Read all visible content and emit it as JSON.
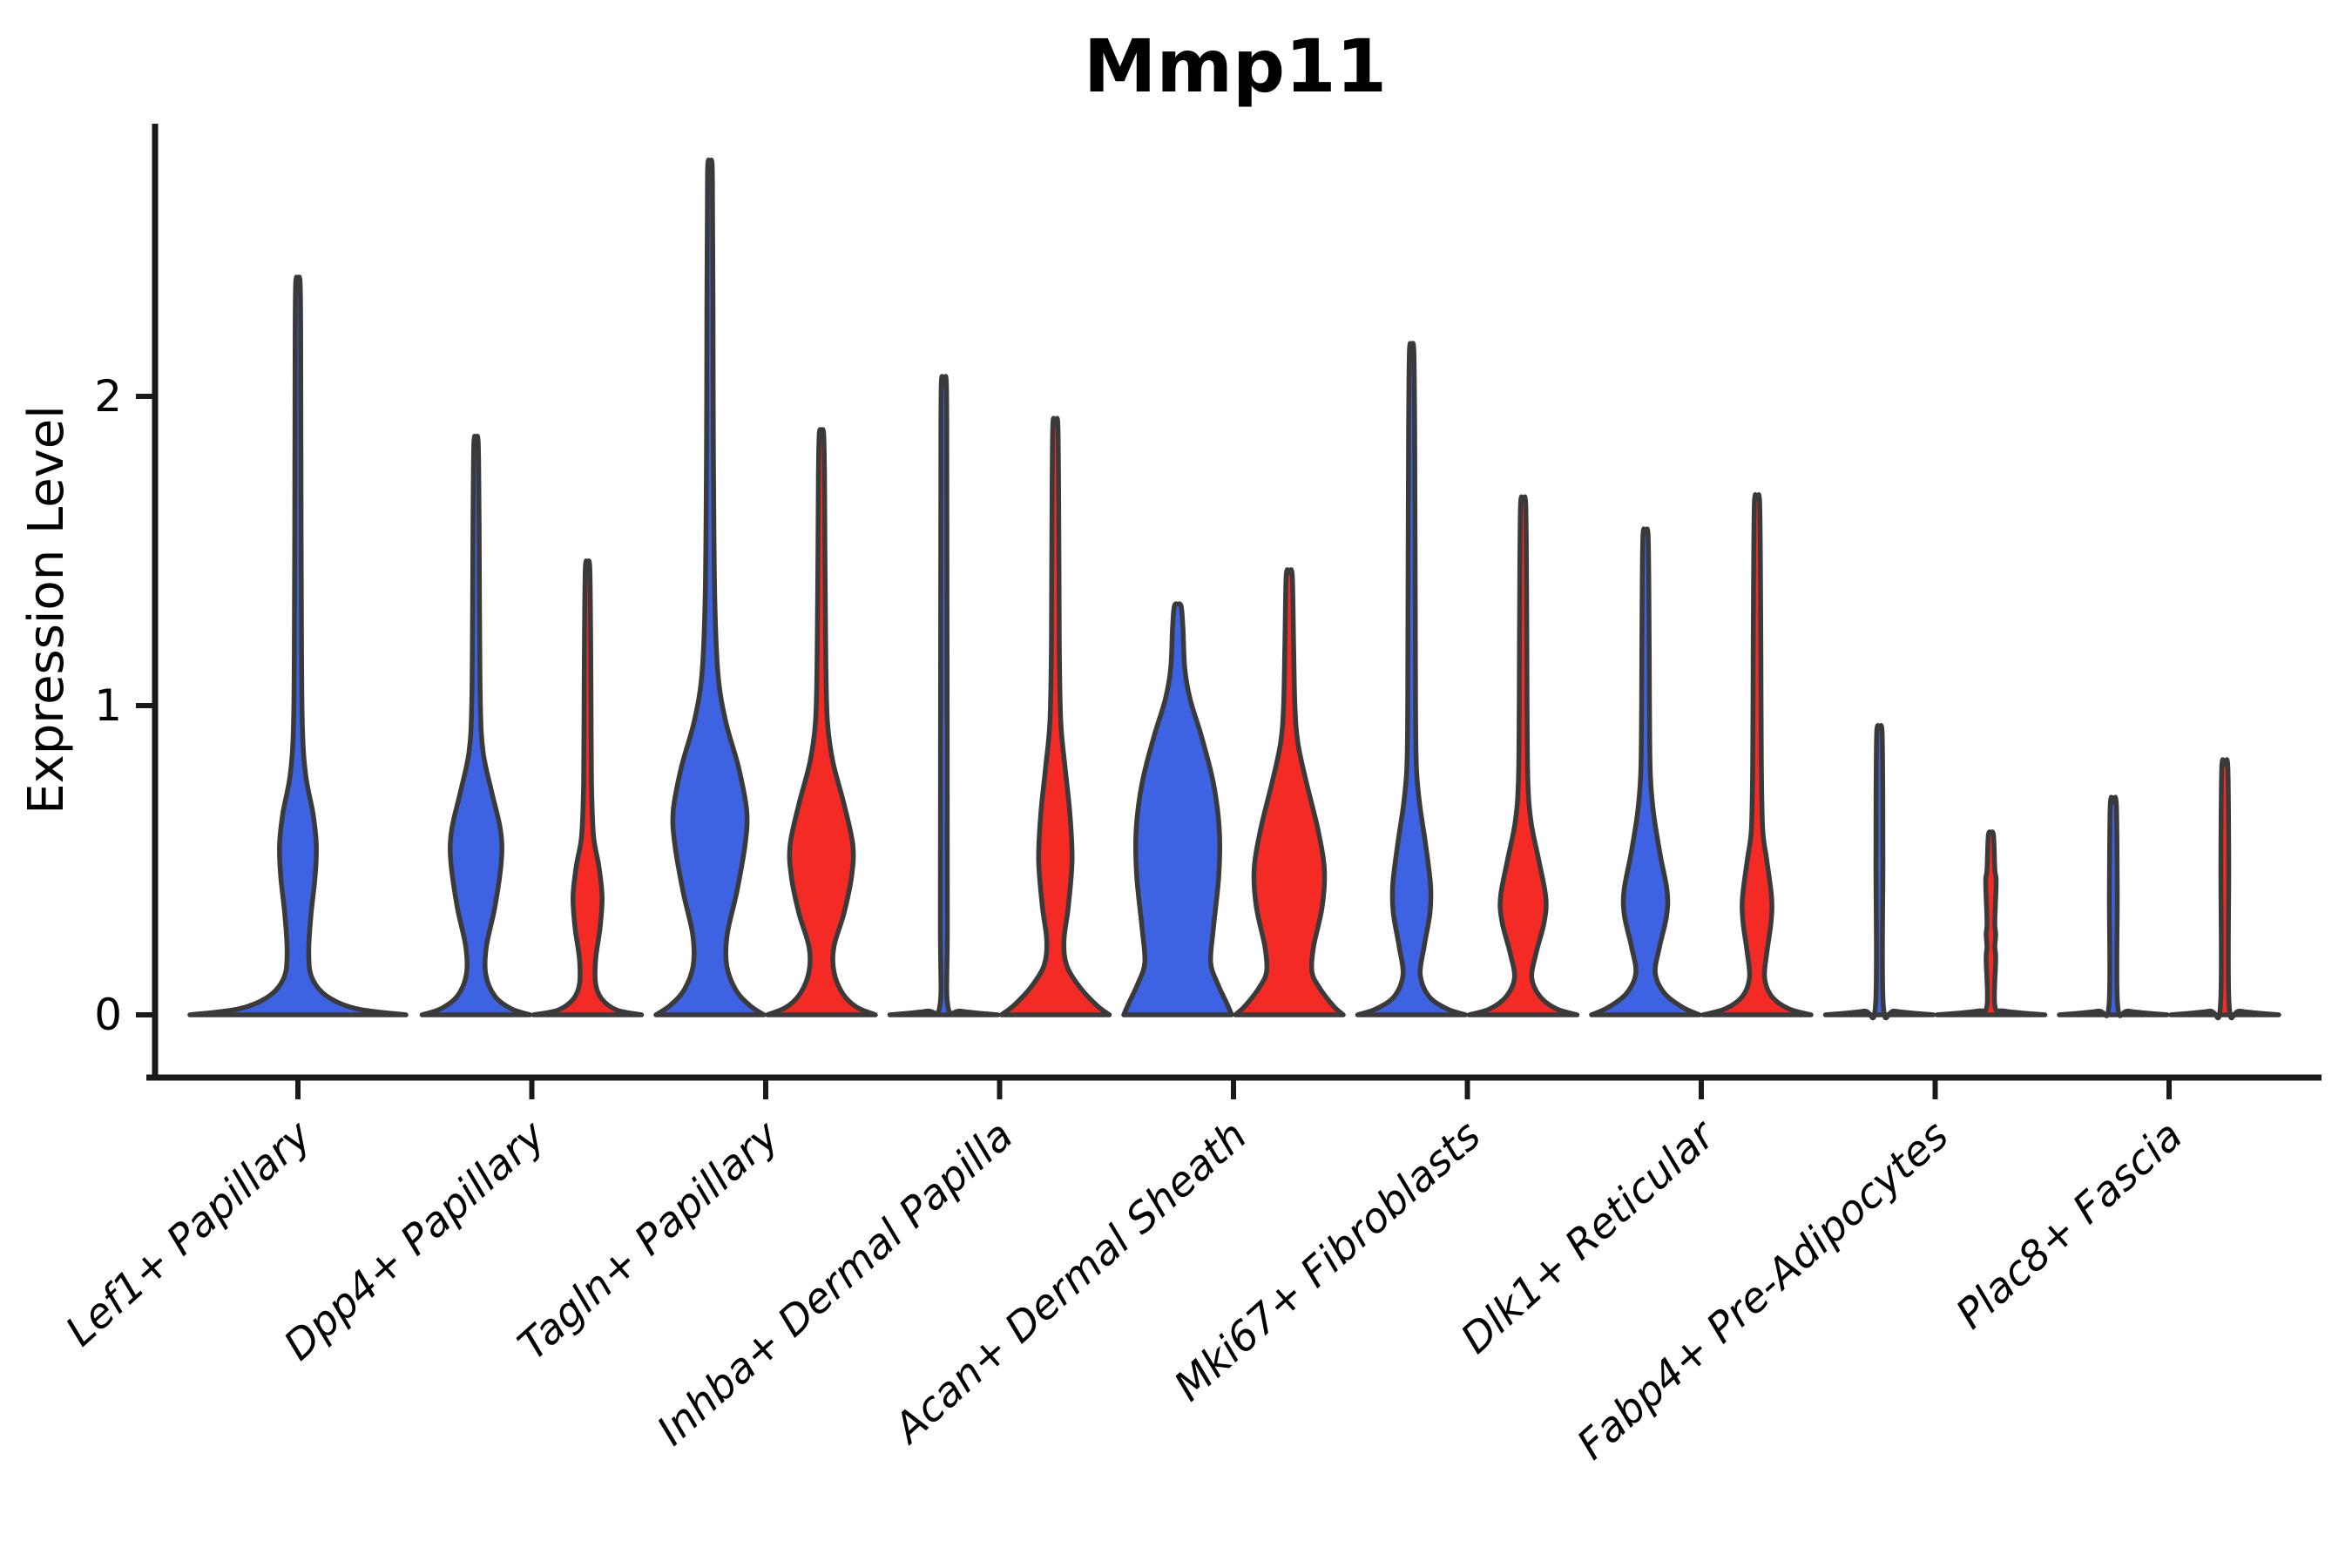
{
  "chart_data": {
    "type": "violin",
    "title": "Mmp11",
    "xlabel": "",
    "ylabel": "Expression Level",
    "yticks": [
      0,
      1,
      2
    ],
    "ylim": [
      0,
      2.9
    ],
    "legend": "none",
    "grid": false,
    "colors": {
      "condition_blue_fill": "#3D63E2",
      "condition_red_fill": "#F32B24",
      "violin_outline": "#3A3A3A",
      "axis_color": "#1a1a1a",
      "background": "#ffffff"
    },
    "categories": [
      "Lef1+ Papillary",
      "Dpp4+ Papillary",
      "Tagln+ Papillary",
      "Inhba+ Dermal Papilla",
      "Acan+ Dermal Sheath",
      "Mki67+ Fibroblasts",
      "Dlk1+ Reticular",
      "Fabp4+ Pre-Adipocytes",
      "Plac8+ Fascia"
    ],
    "series": [
      {
        "name": "condition_blue",
        "color": "#3D63E2",
        "max_expression": [
          2.37,
          1.85,
          2.75,
          2.03,
          1.32,
          2.15,
          1.55,
          0.92,
          0.68
        ]
      },
      {
        "name": "condition_red",
        "color": "#F32B24",
        "max_expression": [
          null,
          1.45,
          1.88,
          1.9,
          1.42,
          1.65,
          1.66,
          0.58,
          0.8
        ]
      }
    ],
    "violins": [
      {
        "category": "Lef1+ Papillary",
        "blue": {
          "max": 2.37,
          "relative_width": 2.0,
          "profile": [
            [
              0,
              1
            ],
            [
              0.02,
              0.54
            ],
            [
              0.06,
              0.27
            ],
            [
              0.12,
              0.13
            ],
            [
              0.2,
              0.1
            ],
            [
              0.32,
              0.12
            ],
            [
              0.45,
              0.16
            ],
            [
              0.55,
              0.17
            ],
            [
              0.65,
              0.14
            ],
            [
              0.78,
              0.07
            ],
            [
              0.95,
              0.04
            ],
            [
              1.3,
              0.032
            ],
            [
              1.8,
              0.028
            ],
            [
              2.2,
              0.026
            ],
            [
              2.37,
              0.02
            ]
          ]
        },
        "red": null
      },
      {
        "category": "Dpp4+ Papillary",
        "blue": {
          "max": 1.85,
          "relative_width": 1.0,
          "profile": [
            [
              0,
              1
            ],
            [
              0.02,
              0.65
            ],
            [
              0.06,
              0.35
            ],
            [
              0.13,
              0.18
            ],
            [
              0.22,
              0.19
            ],
            [
              0.35,
              0.35
            ],
            [
              0.5,
              0.47
            ],
            [
              0.6,
              0.45
            ],
            [
              0.72,
              0.29
            ],
            [
              0.85,
              0.13
            ],
            [
              1.0,
              0.08
            ],
            [
              1.3,
              0.065
            ],
            [
              1.6,
              0.056
            ],
            [
              1.85,
              0.04
            ]
          ]
        },
        "red": {
          "max": 1.45,
          "relative_width": 1.0,
          "profile": [
            [
              0,
              1
            ],
            [
              0.015,
              0.55
            ],
            [
              0.05,
              0.27
            ],
            [
              0.1,
              0.15
            ],
            [
              0.18,
              0.15
            ],
            [
              0.28,
              0.23
            ],
            [
              0.38,
              0.27
            ],
            [
              0.48,
              0.21
            ],
            [
              0.58,
              0.11
            ],
            [
              0.75,
              0.073
            ],
            [
              1.0,
              0.065
            ],
            [
              1.25,
              0.056
            ],
            [
              1.45,
              0.04
            ]
          ]
        }
      },
      {
        "category": "Tagln+ Papillary",
        "blue": {
          "max": 2.75,
          "relative_width": 1.0,
          "profile": [
            [
              0,
              1
            ],
            [
              0.03,
              0.74
            ],
            [
              0.08,
              0.48
            ],
            [
              0.16,
              0.31
            ],
            [
              0.26,
              0.32
            ],
            [
              0.4,
              0.5
            ],
            [
              0.55,
              0.65
            ],
            [
              0.66,
              0.68
            ],
            [
              0.8,
              0.53
            ],
            [
              0.95,
              0.29
            ],
            [
              1.1,
              0.15
            ],
            [
              1.35,
              0.089
            ],
            [
              1.8,
              0.065
            ],
            [
              2.3,
              0.056
            ],
            [
              2.6,
              0.048
            ],
            [
              2.75,
              0.04
            ]
          ]
        },
        "red": {
          "max": 1.88,
          "relative_width": 1.0,
          "profile": [
            [
              0,
              1
            ],
            [
              0.025,
              0.65
            ],
            [
              0.07,
              0.39
            ],
            [
              0.14,
              0.23
            ],
            [
              0.22,
              0.23
            ],
            [
              0.33,
              0.42
            ],
            [
              0.45,
              0.56
            ],
            [
              0.55,
              0.58
            ],
            [
              0.68,
              0.42
            ],
            [
              0.82,
              0.21
            ],
            [
              0.95,
              0.11
            ],
            [
              1.15,
              0.081
            ],
            [
              1.5,
              0.065
            ],
            [
              1.75,
              0.056
            ],
            [
              1.88,
              0.04
            ]
          ]
        }
      },
      {
        "category": "Inhba+ Dermal Papilla",
        "blue": {
          "max": 2.03,
          "relative_width": 1.0,
          "profile": [
            [
              0,
              1
            ],
            [
              0.012,
              0.32
            ],
            [
              0.03,
              0.073
            ],
            [
              0.3,
              0.065
            ],
            [
              1.0,
              0.061
            ],
            [
              1.6,
              0.056
            ],
            [
              2.03,
              0.048
            ]
          ]
        },
        "red": {
          "max": 1.9,
          "relative_width": 1.0,
          "profile": [
            [
              0,
              1
            ],
            [
              0.03,
              0.77
            ],
            [
              0.09,
              0.45
            ],
            [
              0.16,
              0.21
            ],
            [
              0.24,
              0.16
            ],
            [
              0.35,
              0.24
            ],
            [
              0.5,
              0.31
            ],
            [
              0.65,
              0.27
            ],
            [
              0.8,
              0.18
            ],
            [
              0.95,
              0.1
            ],
            [
              1.2,
              0.073
            ],
            [
              1.55,
              0.065
            ],
            [
              1.9,
              0.048
            ]
          ]
        }
      },
      {
        "category": "Acan+ Dermal Sheath",
        "blue": {
          "max": 1.32,
          "relative_width": 1.0,
          "profile": [
            [
              0,
              1
            ],
            [
              0.04,
              0.9
            ],
            [
              0.1,
              0.74
            ],
            [
              0.17,
              0.61
            ],
            [
              0.28,
              0.66
            ],
            [
              0.45,
              0.76
            ],
            [
              0.6,
              0.77
            ],
            [
              0.75,
              0.66
            ],
            [
              0.9,
              0.44
            ],
            [
              1.02,
              0.23
            ],
            [
              1.12,
              0.13
            ],
            [
              1.25,
              0.097
            ],
            [
              1.32,
              0.065
            ]
          ]
        },
        "red": {
          "max": 1.42,
          "relative_width": 1.0,
          "profile": [
            [
              0,
              1
            ],
            [
              0.03,
              0.81
            ],
            [
              0.09,
              0.55
            ],
            [
              0.14,
              0.42
            ],
            [
              0.22,
              0.45
            ],
            [
              0.35,
              0.61
            ],
            [
              0.47,
              0.65
            ],
            [
              0.6,
              0.53
            ],
            [
              0.75,
              0.32
            ],
            [
              0.88,
              0.16
            ],
            [
              1.0,
              0.105
            ],
            [
              1.2,
              0.081
            ],
            [
              1.42,
              0.056
            ]
          ]
        }
      },
      {
        "category": "Mki67+ Fibroblasts",
        "blue": {
          "max": 2.15,
          "relative_width": 1.0,
          "profile": [
            [
              0,
              1
            ],
            [
              0.02,
              0.65
            ],
            [
              0.06,
              0.32
            ],
            [
              0.13,
              0.16
            ],
            [
              0.22,
              0.23
            ],
            [
              0.33,
              0.34
            ],
            [
              0.42,
              0.35
            ],
            [
              0.55,
              0.26
            ],
            [
              0.68,
              0.15
            ],
            [
              0.8,
              0.089
            ],
            [
              1.0,
              0.073
            ],
            [
              1.5,
              0.065
            ],
            [
              1.9,
              0.056
            ],
            [
              2.15,
              0.04
            ]
          ]
        },
        "red": {
          "max": 1.65,
          "relative_width": 1.0,
          "profile": [
            [
              0,
              1
            ],
            [
              0.02,
              0.61
            ],
            [
              0.06,
              0.31
            ],
            [
              0.12,
              0.16
            ],
            [
              0.2,
              0.24
            ],
            [
              0.3,
              0.39
            ],
            [
              0.38,
              0.42
            ],
            [
              0.5,
              0.29
            ],
            [
              0.62,
              0.15
            ],
            [
              0.75,
              0.089
            ],
            [
              1.0,
              0.073
            ],
            [
              1.35,
              0.065
            ],
            [
              1.65,
              0.048
            ]
          ]
        }
      },
      {
        "category": "Dlk1+ Reticular",
        "blue": {
          "max": 1.55,
          "relative_width": 1.0,
          "profile": [
            [
              0,
              1
            ],
            [
              0.025,
              0.68
            ],
            [
              0.07,
              0.35
            ],
            [
              0.135,
              0.18
            ],
            [
              0.22,
              0.26
            ],
            [
              0.32,
              0.39
            ],
            [
              0.4,
              0.4
            ],
            [
              0.52,
              0.27
            ],
            [
              0.65,
              0.15
            ],
            [
              0.78,
              0.089
            ],
            [
              1.0,
              0.073
            ],
            [
              1.3,
              0.065
            ],
            [
              1.55,
              0.048
            ]
          ]
        },
        "red": {
          "max": 1.66,
          "relative_width": 1.0,
          "profile": [
            [
              0,
              1
            ],
            [
              0.02,
              0.58
            ],
            [
              0.06,
              0.27
            ],
            [
              0.12,
              0.14
            ],
            [
              0.2,
              0.18
            ],
            [
              0.3,
              0.26
            ],
            [
              0.38,
              0.27
            ],
            [
              0.5,
              0.18
            ],
            [
              0.6,
              0.105
            ],
            [
              0.8,
              0.081
            ],
            [
              1.1,
              0.073
            ],
            [
              1.4,
              0.065
            ],
            [
              1.66,
              0.048
            ]
          ]
        }
      },
      {
        "category": "Fabp4+ Pre-Adipocytes",
        "blue": {
          "max": 0.92,
          "relative_width": 1.0,
          "profile": [
            [
              0,
              1
            ],
            [
              0.012,
              0.29
            ],
            [
              0.03,
              0.073
            ],
            [
              0.5,
              0.065
            ],
            [
              0.75,
              0.061
            ],
            [
              0.92,
              0.048
            ]
          ]
        },
        "red": {
          "max": 0.58,
          "relative_width": 1.0,
          "profile": [
            [
              0,
              1
            ],
            [
              0.012,
              0.26
            ],
            [
              0.03,
              0.073
            ],
            [
              0.18,
              0.089
            ],
            [
              0.22,
              0.073
            ],
            [
              0.26,
              0.089
            ],
            [
              0.3,
              0.073
            ],
            [
              0.43,
              0.097
            ],
            [
              0.47,
              0.073
            ],
            [
              0.58,
              0.048
            ]
          ]
        }
      },
      {
        "category": "Plac8+ Fascia",
        "blue": {
          "max": 0.68,
          "relative_width": 1.0,
          "profile": [
            [
              0,
              1
            ],
            [
              0.012,
              0.29
            ],
            [
              0.03,
              0.081
            ],
            [
              0.4,
              0.073
            ],
            [
              0.68,
              0.056
            ]
          ]
        },
        "red": {
          "max": 0.8,
          "relative_width": 1.0,
          "profile": [
            [
              0,
              1
            ],
            [
              0.012,
              0.29
            ],
            [
              0.03,
              0.081
            ],
            [
              0.5,
              0.073
            ],
            [
              0.8,
              0.056
            ]
          ]
        }
      }
    ]
  }
}
